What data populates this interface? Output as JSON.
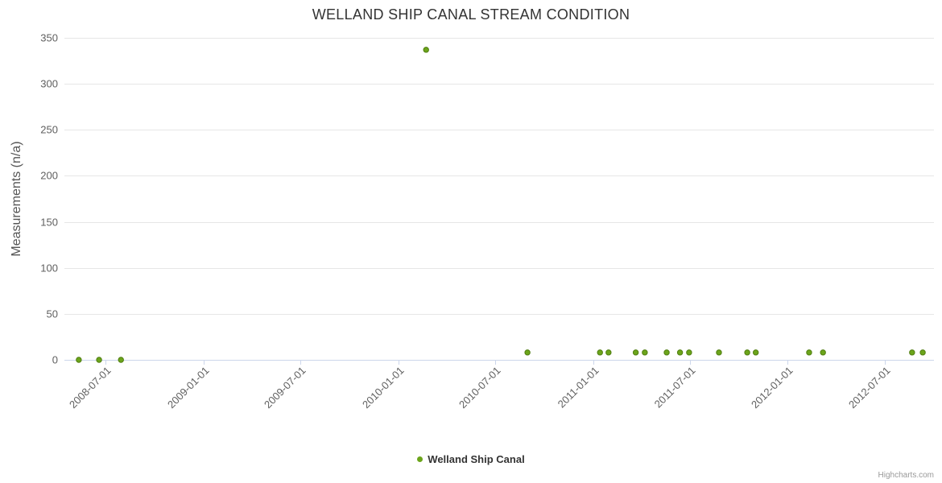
{
  "credits": "Highcharts.com",
  "chart_data": {
    "type": "scatter",
    "title": "WELLAND SHIP CANAL STREAM CONDITION",
    "xlabel": "",
    "ylabel": "Measurements (n/a)",
    "ylim": [
      0,
      350
    ],
    "yticks": [
      0,
      50,
      100,
      150,
      200,
      250,
      300,
      350
    ],
    "x_range": [
      "2008-04-15",
      "2012-10-01"
    ],
    "xticks": [
      "2008-07-01",
      "2009-01-01",
      "2009-07-01",
      "2010-01-01",
      "2010-07-01",
      "2011-01-01",
      "2011-07-01",
      "2012-01-01",
      "2012-07-01"
    ],
    "grid": true,
    "grid_color": "#e6e6e6",
    "axis_line_color": "#ccd6eb",
    "legend_position": "bottom",
    "series": [
      {
        "name": "Welland Ship Canal",
        "color": "#6ca51b",
        "stroke": "#4f7d10",
        "points": [
          [
            "2008-05-12",
            0
          ],
          [
            "2008-06-19",
            0
          ],
          [
            "2008-07-30",
            0
          ],
          [
            "2010-02-22",
            337
          ],
          [
            "2010-08-31",
            8
          ],
          [
            "2011-01-14",
            8
          ],
          [
            "2011-01-30",
            8
          ],
          [
            "2011-03-22",
            8
          ],
          [
            "2011-04-08",
            8
          ],
          [
            "2011-05-19",
            8
          ],
          [
            "2011-06-13",
            8
          ],
          [
            "2011-06-30",
            8
          ],
          [
            "2011-08-25",
            8
          ],
          [
            "2011-10-17",
            8
          ],
          [
            "2011-11-02",
            8
          ],
          [
            "2012-02-10",
            8
          ],
          [
            "2012-03-07",
            8
          ],
          [
            "2012-08-21",
            8
          ],
          [
            "2012-09-10",
            8
          ]
        ]
      }
    ]
  }
}
